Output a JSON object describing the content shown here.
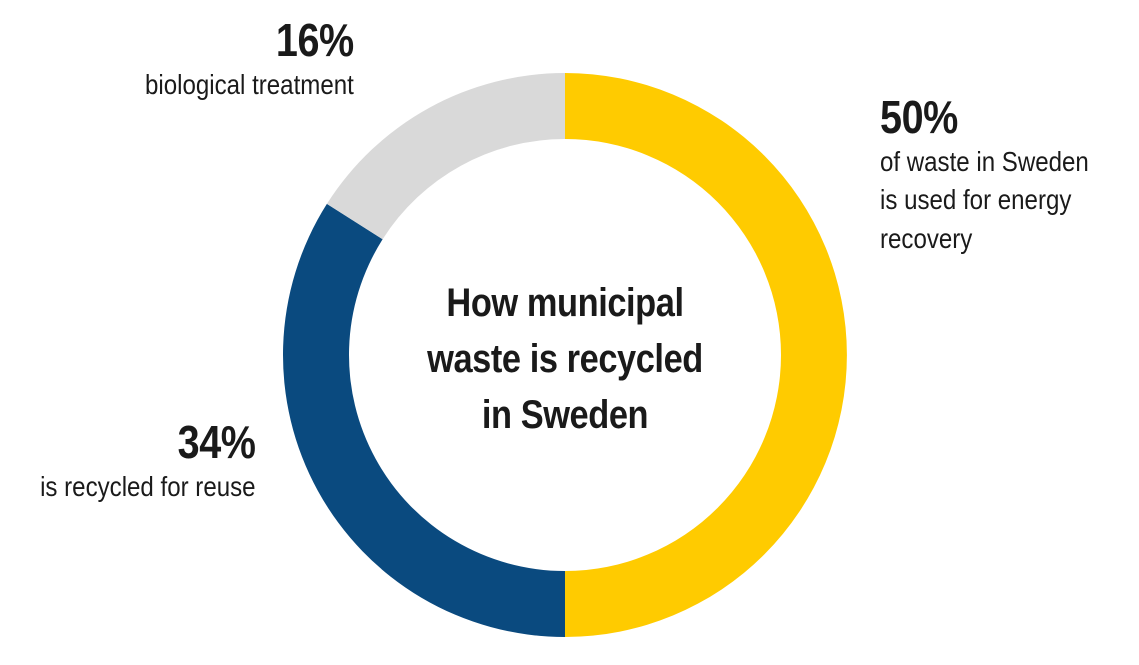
{
  "chart_data": {
    "type": "pie",
    "title_lines": [
      "How municipal",
      "waste is recycled",
      "in Sweden"
    ],
    "slices": [
      {
        "value": 50,
        "value_label": "50%",
        "description_lines": [
          "of waste in Sweden",
          "is used for energy",
          "recovery"
        ],
        "color": "#ffcb00"
      },
      {
        "value": 34,
        "value_label": "34%",
        "description_lines": [
          "is recycled for reuse"
        ],
        "color": "#0a4a7f"
      },
      {
        "value": 16,
        "value_label": "16%",
        "description_lines": [
          "biological treatment"
        ],
        "color": "#d9d9d9"
      }
    ],
    "style": "donut",
    "start": "top, clockwise",
    "legend": "none"
  }
}
